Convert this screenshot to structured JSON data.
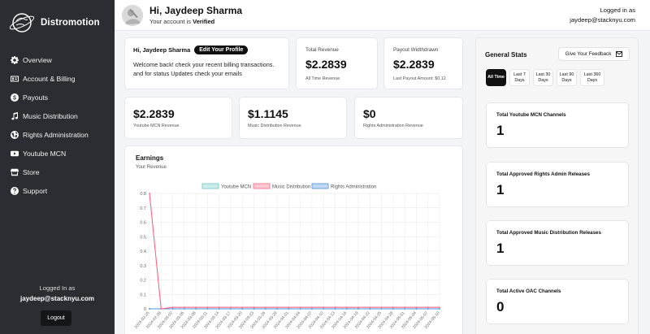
{
  "app": {
    "name": "Distromotion"
  },
  "sidebar": {
    "items": [
      {
        "label": "Overview",
        "icon": "gear-icon"
      },
      {
        "label": "Account & Billing",
        "icon": "id-card-icon"
      },
      {
        "label": "Payouts",
        "icon": "dollar-icon"
      },
      {
        "label": "Music Distribution",
        "icon": "music-note-icon"
      },
      {
        "label": "Rights Administration",
        "icon": "globe-icon"
      },
      {
        "label": "Youtube MCN",
        "icon": "youtube-icon"
      },
      {
        "label": "Store",
        "icon": "store-icon"
      },
      {
        "label": "Support",
        "icon": "question-icon"
      }
    ],
    "logged_in_label": "Logged In as",
    "email": "jaydeep@stacknyu.com",
    "logout_label": "Logout"
  },
  "header": {
    "greeting": "Hi, Jaydeep Sharma",
    "status_prefix": "Your account is",
    "status": "Verified",
    "logged_in_label": "Logged in as",
    "email": "jaydeep@stacknyu.com"
  },
  "welcome": {
    "name": "Hi, Jaydeep Sharma",
    "edit_label": "Edit Your Profile",
    "message": "Welcome back! check your recent billing transactions. and for status Updates check your emails"
  },
  "stats": {
    "total_revenue": {
      "label": "Total Revenue",
      "value": "$2.2839",
      "sub": "All Time Revenue"
    },
    "payout": {
      "label": "Payout Widthdrawn",
      "value": "$2.2839",
      "sub": "Last Payout Amount: $0.12"
    },
    "youtube": {
      "value": "$2.2839",
      "sub": "Youtube MCN Revenue"
    },
    "music": {
      "value": "$1.1145",
      "sub": "Music Distribution Revenue"
    },
    "rights": {
      "value": "$0",
      "sub": "Rights Administration Revenue"
    }
  },
  "earnings": {
    "title": "Earnings",
    "subtitle": "Your Revenue"
  },
  "chart_data": {
    "type": "line",
    "legend_position": "top",
    "grid": true,
    "ylim": [
      0,
      0.8
    ],
    "yticks": [
      0,
      0.1,
      0.2,
      0.3,
      0.4,
      0.5,
      0.6,
      0.7,
      0.8
    ],
    "x": [
      "2024-02-25",
      "2024-02-28",
      "2024-03-02",
      "2024-03-05",
      "2024-03-08",
      "2024-03-11",
      "2024-03-14",
      "2024-03-17",
      "2024-03-20",
      "2024-03-23",
      "2024-03-26",
      "2024-03-29",
      "2024-04-01",
      "2024-04-04",
      "2024-04-07",
      "2024-04-10",
      "2024-04-13",
      "2024-04-16",
      "2024-04-19",
      "2024-04-22",
      "2024-04-25",
      "2024-04-28",
      "2024-05-01",
      "2024-05-04",
      "2024-05-07",
      "2024-05-10"
    ],
    "series": [
      {
        "name": "Youtube MCN",
        "color": "#6cc5c5",
        "values": [
          0,
          0,
          0,
          0,
          0,
          0,
          0,
          0,
          0,
          0,
          0,
          0,
          0,
          0,
          0,
          0,
          0,
          0,
          0,
          0,
          0,
          0,
          0,
          0,
          0,
          0
        ]
      },
      {
        "name": "Music Distribution",
        "color": "#ff6384",
        "values": [
          0.8,
          0,
          0.01,
          0.01,
          0.01,
          0.01,
          0.01,
          0.01,
          0.01,
          0.01,
          0.01,
          0.01,
          0.01,
          0.01,
          0.01,
          0.01,
          0.01,
          0.01,
          0.01,
          0.01,
          0.01,
          0.01,
          0.01,
          0.01,
          0.01,
          0.01
        ]
      },
      {
        "name": "Rights Administration",
        "color": "#4a90d9",
        "values": [
          0,
          0,
          0,
          0,
          0,
          0,
          0,
          0,
          0,
          0,
          0,
          0,
          0,
          0,
          0,
          0,
          0,
          0,
          0,
          0,
          0,
          0,
          0,
          0,
          0,
          0
        ]
      }
    ]
  },
  "general": {
    "title": "General Stats",
    "feedback_label": "Give Your Feedback",
    "filters": [
      {
        "label": "All Time",
        "active": true
      },
      {
        "label": "Last 7 Days",
        "active": false
      },
      {
        "label": "Last 30 Days",
        "active": false
      },
      {
        "label": "Last 90 Days",
        "active": false
      },
      {
        "label": "Last 360 Days",
        "active": false
      }
    ],
    "cards": [
      {
        "label": "Total Youtube MCN Channels",
        "value": "1"
      },
      {
        "label": "Total Approved Rights Admin Releases",
        "value": "1"
      },
      {
        "label": "Total Approved Music Distribution Releases",
        "value": "1"
      },
      {
        "label": "Total Active OAC Channels",
        "value": "0"
      }
    ]
  }
}
